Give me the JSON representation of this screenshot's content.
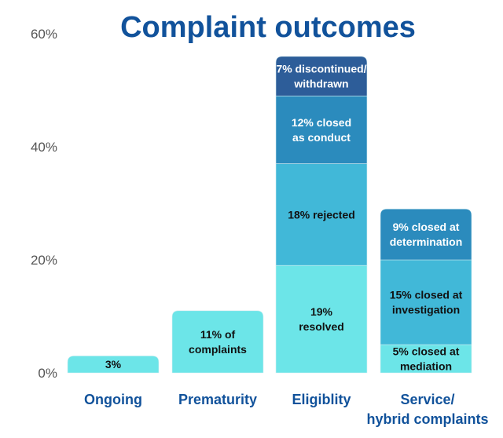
{
  "chart_data": {
    "type": "bar",
    "stacked": true,
    "title": "Complaint outcomes",
    "xlabel": "",
    "ylabel": "",
    "ylim": [
      0,
      60
    ],
    "yticks": [
      0,
      20,
      40,
      60
    ],
    "ytick_labels": [
      "0%",
      "20%",
      "40%",
      "60%"
    ],
    "grid": false,
    "categories": [
      {
        "label": [
          "Ongoing"
        ],
        "segments": [
          {
            "value": 3,
            "label": [
              "3%"
            ],
            "color": "#6ce5e8",
            "text_color": "#111111"
          }
        ]
      },
      {
        "label": [
          "Prematurity"
        ],
        "segments": [
          {
            "value": 11,
            "label": [
              "11% of",
              "complaints"
            ],
            "color": "#6ce5e8",
            "text_color": "#111111"
          }
        ]
      },
      {
        "label": [
          "Eligiblity"
        ],
        "segments": [
          {
            "value": 19,
            "label": [
              "19%",
              "resolved"
            ],
            "color": "#6ce5e8",
            "text_color": "#111111"
          },
          {
            "value": 18,
            "label": [
              "18% rejected"
            ],
            "color": "#41b8d8",
            "text_color": "#111111"
          },
          {
            "value": 12,
            "label": [
              "12% closed",
              "as conduct"
            ],
            "color": "#2b8bbd",
            "text_color": "#ffffff"
          },
          {
            "value": 7,
            "label": [
              "7% discontinued/",
              "withdrawn"
            ],
            "color": "#2d5d99",
            "text_color": "#ffffff"
          }
        ]
      },
      {
        "label": [
          "Service/",
          "hybrid complaints"
        ],
        "segments": [
          {
            "value": 5,
            "label": [
              "5% closed at",
              "mediation"
            ],
            "color": "#6ce5e8",
            "text_color": "#111111"
          },
          {
            "value": 15,
            "label": [
              "15% closed at",
              "investigation"
            ],
            "color": "#41b8d8",
            "text_color": "#111111"
          },
          {
            "value": 9,
            "label": [
              "9% closed at",
              "determination"
            ],
            "color": "#2b8bbd",
            "text_color": "#ffffff"
          }
        ]
      }
    ]
  }
}
